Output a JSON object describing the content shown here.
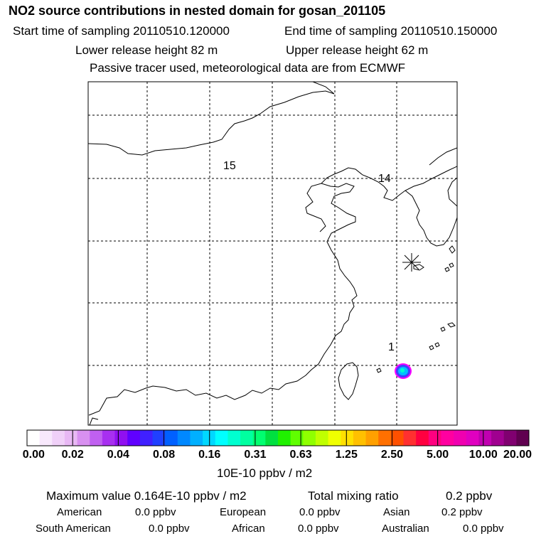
{
  "title": "NO2 source contributions in nested domain for gosan_201105",
  "start_label": "Start time of sampling 20110510.120000",
  "end_label": "End time of sampling 20110510.150000",
  "lower_label": "Lower release height   82 m",
  "upper_label": "Upper release height   62 m",
  "tracer_note": "Passive tracer used, meteorological data are from ECMWF",
  "map": {
    "trajectory_labels": [
      "15",
      "14",
      "1"
    ],
    "receptor_marker": "asterisk-icon",
    "plume_colors": [
      "#ff00ff",
      "#4040ff",
      "#00c0ff",
      "#00ffd0"
    ]
  },
  "colorbar": {
    "labels": [
      "0.00",
      "0.02",
      "0.04",
      "0.08",
      "0.16",
      "0.31",
      "0.63",
      "1.25",
      "2.50",
      "5.00",
      "10.00",
      "20.00"
    ],
    "colors": [
      "#ffffff",
      "#f8e8fc",
      "#f0d0f8",
      "#e8b8f4",
      "#d890f0",
      "#c060f0",
      "#a830f0",
      "#9010f0",
      "#6000ff",
      "#4020ff",
      "#2040ff",
      "#0060ff",
      "#0088ff",
      "#00b0ff",
      "#00d8ff",
      "#00ffff",
      "#00ffd0",
      "#00ffa0",
      "#00ff70",
      "#00e040",
      "#20f000",
      "#60ff00",
      "#90ff00",
      "#c0ff00",
      "#f0ff00",
      "#ffe000",
      "#ffc000",
      "#ffa000",
      "#ff7000",
      "#ff5000",
      "#ff3030",
      "#ff0040",
      "#ff0080",
      "#ff00a0",
      "#f000b0",
      "#e000c0",
      "#c000b0",
      "#a00090",
      "#800070",
      "#600050"
    ],
    "unit": "10E-10 ppbv / m2"
  },
  "stats": {
    "max_label": "Maximum value  0.164E-10 ppbv / m2",
    "total_label": "Total mixing ratio",
    "total_value": "0.2 ppbv",
    "regions": [
      {
        "name": "American",
        "value": "0.0 ppbv"
      },
      {
        "name": "European",
        "value": "0.0 ppbv"
      },
      {
        "name": "Asian",
        "value": "0.2 ppbv"
      },
      {
        "name": "South American",
        "value": "0.0 ppbv"
      },
      {
        "name": "African",
        "value": "0.0 ppbv"
      },
      {
        "name": "Australian",
        "value": "0.0 ppbv"
      }
    ]
  }
}
